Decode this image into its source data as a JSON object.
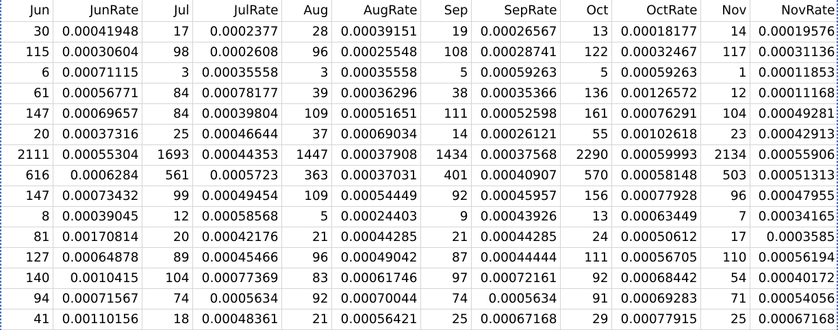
{
  "sheet": {
    "headers": [
      "Jun",
      "JunRate",
      "Jul",
      "JulRate",
      "Aug",
      "AugRate",
      "Sep",
      "SepRate",
      "Oct",
      "OctRate",
      "Nov",
      "NovRate"
    ],
    "rows": [
      [
        "30",
        "0.00041948",
        "17",
        "0.0002377",
        "28",
        "0.00039151",
        "19",
        "0.00026567",
        "13",
        "0.00018177",
        "14",
        "0.00019576"
      ],
      [
        "115",
        "0.00030604",
        "98",
        "0.0002608",
        "96",
        "0.00025548",
        "108",
        "0.00028741",
        "122",
        "0.00032467",
        "117",
        "0.00031136"
      ],
      [
        "6",
        "0.00071115",
        "3",
        "0.00035558",
        "3",
        "0.00035558",
        "5",
        "0.00059263",
        "5",
        "0.00059263",
        "1",
        "0.00011853"
      ],
      [
        "61",
        "0.00056771",
        "84",
        "0.00078177",
        "39",
        "0.00036296",
        "38",
        "0.00035366",
        "136",
        "0.00126572",
        "12",
        "0.00011168"
      ],
      [
        "147",
        "0.00069657",
        "84",
        "0.00039804",
        "109",
        "0.00051651",
        "111",
        "0.00052598",
        "161",
        "0.00076291",
        "104",
        "0.00049281"
      ],
      [
        "20",
        "0.00037316",
        "25",
        "0.00046644",
        "37",
        "0.00069034",
        "14",
        "0.00026121",
        "55",
        "0.00102618",
        "23",
        "0.00042913"
      ],
      [
        "2111",
        "0.00055304",
        "1693",
        "0.00044353",
        "1447",
        "0.00037908",
        "1434",
        "0.00037568",
        "2290",
        "0.00059993",
        "2134",
        "0.00055906"
      ],
      [
        "616",
        "0.0006284",
        "561",
        "0.0005723",
        "363",
        "0.00037031",
        "401",
        "0.00040907",
        "570",
        "0.00058148",
        "503",
        "0.00051313"
      ],
      [
        "147",
        "0.00073432",
        "99",
        "0.00049454",
        "109",
        "0.00054449",
        "92",
        "0.00045957",
        "156",
        "0.00077928",
        "96",
        "0.00047955"
      ],
      [
        "8",
        "0.00039045",
        "12",
        "0.00058568",
        "5",
        "0.00024403",
        "9",
        "0.00043926",
        "13",
        "0.00063449",
        "7",
        "0.00034165"
      ],
      [
        "81",
        "0.00170814",
        "20",
        "0.00042176",
        "21",
        "0.00044285",
        "21",
        "0.00044285",
        "24",
        "0.00050612",
        "17",
        "0.0003585"
      ],
      [
        "127",
        "0.00064878",
        "89",
        "0.00045466",
        "96",
        "0.00049042",
        "87",
        "0.00044444",
        "111",
        "0.00056705",
        "110",
        "0.00056194"
      ],
      [
        "140",
        "0.0010415",
        "104",
        "0.00077369",
        "83",
        "0.00061746",
        "97",
        "0.00072161",
        "92",
        "0.00068442",
        "54",
        "0.00040172"
      ],
      [
        "94",
        "0.00071567",
        "74",
        "0.0005634",
        "92",
        "0.00070044",
        "74",
        "0.0005634",
        "91",
        "0.00069283",
        "71",
        "0.00054056"
      ],
      [
        "41",
        "0.00110156",
        "18",
        "0.00048361",
        "21",
        "0.00056421",
        "25",
        "0.00067168",
        "29",
        "0.00077915",
        "25",
        "0.00067168"
      ]
    ]
  }
}
